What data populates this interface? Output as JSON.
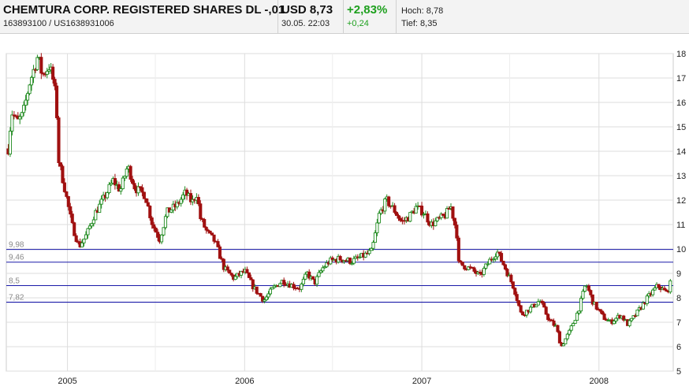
{
  "header": {
    "name": "CHEMTURA CORP. REGISTERED SHARES DL -,01",
    "ids": "163893100  /  US1638931006",
    "price": "USD 8,73",
    "datetime": "30.05. 22:03",
    "change_pct": "+2,83%",
    "change_abs": "+0,24",
    "high": "Hoch: 8,78",
    "low": "Tief: 8,35"
  },
  "chart_data": {
    "type": "candlestick",
    "y_axis": {
      "min": 5,
      "max": 18,
      "ticks": [
        5,
        6,
        7,
        8,
        9,
        10,
        11,
        12,
        13,
        14,
        15,
        16,
        17,
        18
      ],
      "position": "right"
    },
    "x_ticks": [
      "2005",
      "2006",
      "2007",
      "2008"
    ],
    "grid": true,
    "up_color": "#1f8a1f",
    "down_color": "#a01010",
    "reference_lines": [
      {
        "label": "9,98",
        "value": 9.98
      },
      {
        "label": "9,46",
        "value": 9.46
      },
      {
        "label": "8,5",
        "value": 8.5
      },
      {
        "label": "7,82",
        "value": 7.82
      }
    ],
    "price_path": [
      [
        "2004-09-01",
        14.1
      ],
      [
        "2004-09-08",
        15.6
      ],
      [
        "2004-09-20",
        15.2
      ],
      [
        "2004-10-01",
        15.5
      ],
      [
        "2004-10-15",
        16.8
      ],
      [
        "2004-11-01",
        17.9
      ],
      [
        "2004-11-10",
        17.1
      ],
      [
        "2004-11-25",
        17.5
      ],
      [
        "2004-12-05",
        16.7
      ],
      [
        "2004-12-12",
        15.0
      ],
      [
        "2004-12-14",
        13.6
      ],
      [
        "2004-12-25",
        12.6
      ],
      [
        "2005-01-10",
        11.0
      ],
      [
        "2005-01-25",
        10.1
      ],
      [
        "2005-02-10",
        10.6
      ],
      [
        "2005-02-25",
        11.4
      ],
      [
        "2005-03-15",
        12.0
      ],
      [
        "2005-04-05",
        12.8
      ],
      [
        "2005-04-20",
        12.4
      ],
      [
        "2005-05-05",
        13.4
      ],
      [
        "2005-05-20",
        12.5
      ],
      [
        "2005-06-10",
        12.2
      ],
      [
        "2005-06-25",
        11.0
      ],
      [
        "2005-07-10",
        10.4
      ],
      [
        "2005-07-25",
        11.5
      ],
      [
        "2005-08-15",
        11.8
      ],
      [
        "2005-09-01",
        12.3
      ],
      [
        "2005-09-15",
        11.9
      ],
      [
        "2005-09-25",
        12.3
      ],
      [
        "2005-10-01",
        11.3
      ],
      [
        "2005-10-15",
        10.7
      ],
      [
        "2005-11-01",
        10.3
      ],
      [
        "2005-11-20",
        9.2
      ],
      [
        "2005-12-10",
        8.8
      ],
      [
        "2006-01-01",
        9.1
      ],
      [
        "2006-01-20",
        8.4
      ],
      [
        "2006-02-10",
        7.9
      ],
      [
        "2006-03-01",
        8.4
      ],
      [
        "2006-03-20",
        8.7
      ],
      [
        "2006-04-10",
        8.5
      ],
      [
        "2006-04-25",
        8.4
      ],
      [
        "2006-05-10",
        9.0
      ],
      [
        "2006-05-25",
        8.6
      ],
      [
        "2006-06-10",
        9.2
      ],
      [
        "2006-06-25",
        9.5
      ],
      [
        "2006-07-15",
        9.6
      ],
      [
        "2006-08-10",
        9.5
      ],
      [
        "2006-09-01",
        9.7
      ],
      [
        "2006-09-20",
        9.9
      ],
      [
        "2006-10-05",
        11.4
      ],
      [
        "2006-10-20",
        12.0
      ],
      [
        "2006-11-05",
        11.6
      ],
      [
        "2006-11-20",
        11.1
      ],
      [
        "2006-12-05",
        11.3
      ],
      [
        "2006-12-20",
        11.7
      ],
      [
        "2007-01-05",
        11.5
      ],
      [
        "2007-01-20",
        11.0
      ],
      [
        "2007-02-05",
        11.2
      ],
      [
        "2007-02-20",
        11.4
      ],
      [
        "2007-03-01",
        11.8
      ],
      [
        "2007-03-10",
        11.0
      ],
      [
        "2007-03-15",
        10.5
      ],
      [
        "2007-03-18",
        9.4
      ],
      [
        "2007-04-10",
        9.2
      ],
      [
        "2007-05-01",
        8.9
      ],
      [
        "2007-05-20",
        9.5
      ],
      [
        "2007-06-05",
        9.9
      ],
      [
        "2007-06-20",
        9.3
      ],
      [
        "2007-07-10",
        8.4
      ],
      [
        "2007-07-25",
        7.3
      ],
      [
        "2007-08-15",
        7.6
      ],
      [
        "2007-09-01",
        7.9
      ],
      [
        "2007-09-20",
        7.1
      ],
      [
        "2007-10-05",
        6.8
      ],
      [
        "2007-10-15",
        6.0
      ],
      [
        "2007-11-01",
        6.6
      ],
      [
        "2007-11-20",
        7.5
      ],
      [
        "2007-12-05",
        8.6
      ],
      [
        "2007-12-20",
        7.8
      ],
      [
        "2008-01-10",
        7.2
      ],
      [
        "2008-01-25",
        7.0
      ],
      [
        "2008-02-15",
        7.3
      ],
      [
        "2008-03-01",
        6.9
      ],
      [
        "2008-03-20",
        7.4
      ],
      [
        "2008-04-10",
        8.0
      ],
      [
        "2008-05-01",
        8.5
      ],
      [
        "2008-05-20",
        8.2
      ],
      [
        "2008-05-30",
        8.73
      ]
    ]
  }
}
